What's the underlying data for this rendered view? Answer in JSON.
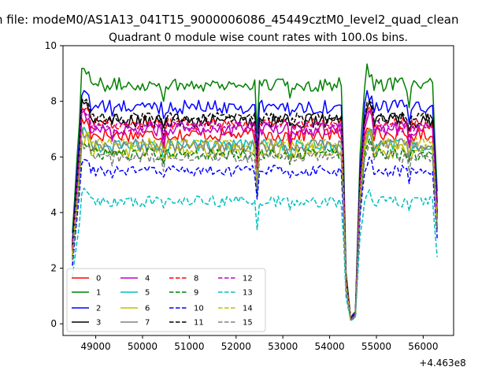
{
  "figure": {
    "suptitle": "n file: modeM0/AS1A13_041T15_9000006086_45449cztM0_level2_quad_clean"
  },
  "chart_data": {
    "type": "line",
    "title": "Quadrant 0 module wise count rates with 100.0s bins.",
    "xlabel": "",
    "ylabel": "",
    "x_offset_text": "+4.463e8",
    "x_offset": 446300000,
    "xlim": [
      48300,
      56650
    ],
    "ylim": [
      -0.42,
      10.0
    ],
    "xticks": [
      49000,
      50000,
      51000,
      52000,
      53000,
      54000,
      55000,
      56000
    ],
    "xtick_labels": [
      "49000",
      "50000",
      "51000",
      "52000",
      "53000",
      "54000",
      "55000",
      "56000"
    ],
    "yticks": [
      0,
      2,
      4,
      6,
      8,
      10
    ],
    "ytick_labels": [
      "0",
      "2",
      "4",
      "6",
      "8",
      "10"
    ],
    "grid": false,
    "legend": {
      "placement": "lower-left",
      "columns": 4
    },
    "shape": {
      "gap_start": 54270,
      "gap_end": 54750,
      "end": 56300,
      "dips": [
        [
          49350,
          0.97
        ],
        [
          50450,
          0.94
        ],
        [
          52450,
          0.78
        ],
        [
          53150,
          0.95
        ],
        [
          55700,
          0.93
        ]
      ],
      "gap_profile": [
        [
          54270,
          0.95
        ],
        [
          54350,
          0.22
        ],
        [
          54450,
          0.02
        ],
        [
          54550,
          0.04
        ],
        [
          54650,
          0.7
        ],
        [
          54750,
          1.0
        ]
      ]
    },
    "series": [
      {
        "name": "0",
        "color": "#ff0000",
        "dash": "solid",
        "level": 6.8,
        "amp": 0.25
      },
      {
        "name": "1",
        "color": "#008000",
        "dash": "solid",
        "level": 8.6,
        "amp": 0.25
      },
      {
        "name": "2",
        "color": "#0000ff",
        "dash": "solid",
        "level": 7.8,
        "amp": 0.25
      },
      {
        "name": "3",
        "color": "#000000",
        "dash": "solid",
        "level": 7.3,
        "amp": 0.25
      },
      {
        "name": "4",
        "color": "#bf00bf",
        "dash": "solid",
        "level": 7.0,
        "amp": 0.25
      },
      {
        "name": "5",
        "color": "#00bfbf",
        "dash": "solid",
        "level": 6.4,
        "amp": 0.25
      },
      {
        "name": "6",
        "color": "#bfbf00",
        "dash": "solid",
        "level": 6.2,
        "amp": 0.25
      },
      {
        "name": "7",
        "color": "#808080",
        "dash": "solid",
        "level": 6.4,
        "amp": 0.25
      },
      {
        "name": "8",
        "color": "#ff0000",
        "dash": "dashed",
        "level": 7.2,
        "amp": 0.2
      },
      {
        "name": "9",
        "color": "#008000",
        "dash": "dashed",
        "level": 6.1,
        "amp": 0.2
      },
      {
        "name": "10",
        "color": "#0000ff",
        "dash": "dashed",
        "level": 5.5,
        "amp": 0.2
      },
      {
        "name": "11",
        "color": "#000000",
        "dash": "dashed",
        "level": 7.4,
        "amp": 0.2
      },
      {
        "name": "12",
        "color": "#bf00bf",
        "dash": "dashed",
        "level": 7.1,
        "amp": 0.2
      },
      {
        "name": "13",
        "color": "#00bfbf",
        "dash": "dashed",
        "level": 4.4,
        "amp": 0.2
      },
      {
        "name": "14",
        "color": "#bfbf00",
        "dash": "dashed",
        "level": 6.5,
        "amp": 0.2
      },
      {
        "name": "15",
        "color": "#808080",
        "dash": "dashed",
        "level": 6.0,
        "amp": 0.2
      }
    ]
  }
}
